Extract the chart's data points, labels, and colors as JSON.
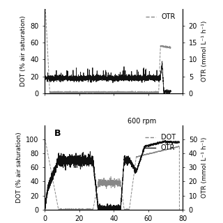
{
  "panel_A": {
    "dot_color": "#888888",
    "otr_color": "#111111",
    "dot_style": "--",
    "otr_style": "-",
    "xlim": [
      0,
      80
    ],
    "ylim_left": [
      0,
      100
    ],
    "ylim_right": [
      0,
      25
    ],
    "yticks_left": [
      0,
      20,
      40,
      60,
      80
    ],
    "yticks_right": [
      0,
      5,
      10,
      15,
      20
    ],
    "ylabel_left": "DOT (% air saturation)",
    "ylabel_right": "OTR (mmol L⁻¹ h⁻¹)",
    "legend_text": "OTR",
    "legend_color": "#888888"
  },
  "panel_B": {
    "rpm_label": "600 rpm",
    "dot_color": "#888888",
    "otr_color": "#111111",
    "dot_style": "--",
    "otr_style": "-",
    "xlim": [
      0,
      80
    ],
    "ylim_left": [
      0,
      120
    ],
    "ylim_right": [
      0,
      60
    ],
    "yticks_left": [
      0,
      20,
      40,
      60,
      80,
      100
    ],
    "yticks_right": [
      0,
      10,
      20,
      30,
      40,
      50
    ],
    "ylabel_left": "DOT (% air saturation)",
    "ylabel_right": "OTR (mmol L⁻¹ h⁻¹)",
    "legend_entries": [
      "DOT",
      "OTR"
    ],
    "panel_label": "B"
  },
  "bg_color": "#ffffff",
  "font_size": 7,
  "label_font_size": 6.5
}
